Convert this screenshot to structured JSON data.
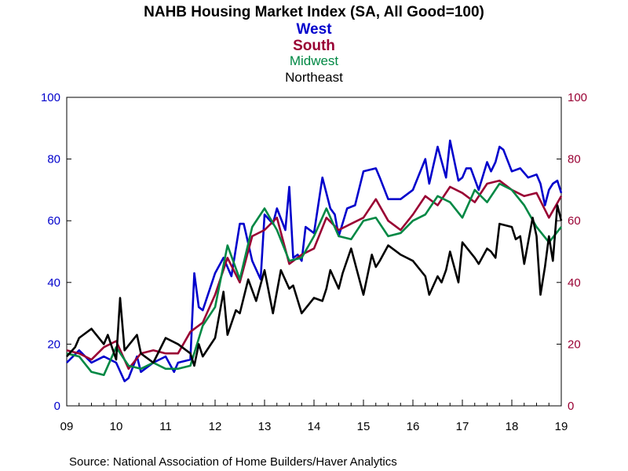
{
  "chart_data": {
    "type": "line",
    "title": "NAHB Housing Market Index (SA, All Good=100)",
    "xlabel": "",
    "ylabel": "",
    "source": "Source:  National Association of Home Builders/Haver Analytics",
    "x_tick_labels": [
      "09",
      "10",
      "11",
      "12",
      "13",
      "14",
      "15",
      "16",
      "17",
      "18",
      "19"
    ],
    "left_axis": {
      "ylim": [
        0,
        100
      ],
      "ticks": [
        "0",
        "20",
        "40",
        "60",
        "80",
        "100"
      ],
      "color": "#0000cc"
    },
    "right_axis": {
      "ylim": [
        0,
        100
      ],
      "ticks": [
        "0",
        "20",
        "40",
        "60",
        "80",
        "100"
      ],
      "color": "#990033"
    },
    "x_range": [
      2009.0,
      2019.0
    ],
    "grid": false,
    "legend": "top-center",
    "series": [
      {
        "name": "West",
        "color": "#0000cc",
        "x": [
          2009.0,
          2009.25,
          2009.5,
          2009.75,
          2010.0,
          2010.17,
          2010.25,
          2010.42,
          2010.5,
          2010.75,
          2011.0,
          2011.17,
          2011.25,
          2011.5,
          2011.58,
          2011.67,
          2011.75,
          2012.0,
          2012.17,
          2012.33,
          2012.5,
          2012.58,
          2012.75,
          2012.92,
          2013.0,
          2013.17,
          2013.25,
          2013.42,
          2013.5,
          2013.58,
          2013.67,
          2013.75,
          2013.83,
          2014.0,
          2014.17,
          2014.33,
          2014.42,
          2014.5,
          2014.67,
          2014.83,
          2015.0,
          2015.25,
          2015.33,
          2015.5,
          2015.75,
          2016.0,
          2016.25,
          2016.33,
          2016.5,
          2016.67,
          2016.75,
          2016.92,
          2017.0,
          2017.08,
          2017.17,
          2017.33,
          2017.5,
          2017.58,
          2017.67,
          2017.75,
          2017.83,
          2018.0,
          2018.17,
          2018.33,
          2018.5,
          2018.58,
          2018.67,
          2018.75,
          2018.83,
          2018.92,
          2019.0
        ],
        "y": [
          14,
          18,
          14,
          16,
          14,
          8,
          9,
          16,
          11,
          14,
          16,
          11,
          14,
          15,
          43,
          32,
          31,
          43,
          48,
          42,
          59,
          59,
          47,
          41,
          62,
          59,
          64,
          57,
          71,
          48,
          49,
          47,
          58,
          56,
          74,
          64,
          62,
          55,
          64,
          65,
          76,
          77,
          74,
          67,
          67,
          70,
          80,
          72,
          84,
          74,
          86,
          73,
          74,
          77,
          77,
          70,
          79,
          76,
          79,
          84,
          83,
          76,
          77,
          74,
          75,
          72,
          65,
          70,
          72,
          73,
          69
        ]
      },
      {
        "name": "South",
        "color": "#990033",
        "x": [
          2009.0,
          2009.25,
          2009.5,
          2009.75,
          2010.0,
          2010.25,
          2010.5,
          2010.75,
          2011.0,
          2011.25,
          2011.5,
          2011.75,
          2012.0,
          2012.25,
          2012.5,
          2012.75,
          2013.0,
          2013.25,
          2013.5,
          2013.75,
          2014.0,
          2014.25,
          2014.5,
          2014.75,
          2015.0,
          2015.25,
          2015.5,
          2015.75,
          2016.0,
          2016.25,
          2016.5,
          2016.75,
          2017.0,
          2017.25,
          2017.5,
          2017.75,
          2018.0,
          2018.25,
          2018.5,
          2018.75,
          2019.0
        ],
        "y": [
          18,
          17,
          15,
          19,
          21,
          12,
          17,
          18,
          17,
          17,
          24,
          27,
          36,
          48,
          40,
          55,
          57,
          61,
          46,
          49,
          51,
          61,
          57,
          59,
          61,
          67,
          60,
          57,
          62,
          68,
          65,
          71,
          69,
          66,
          72,
          73,
          70,
          68,
          69,
          61,
          68
        ]
      },
      {
        "name": "Midwest",
        "color": "#008844",
        "x": [
          2009.0,
          2009.25,
          2009.5,
          2009.75,
          2010.0,
          2010.25,
          2010.5,
          2010.75,
          2011.0,
          2011.25,
          2011.5,
          2011.75,
          2012.0,
          2012.25,
          2012.5,
          2012.75,
          2013.0,
          2013.25,
          2013.5,
          2013.75,
          2014.0,
          2014.25,
          2014.5,
          2014.75,
          2015.0,
          2015.25,
          2015.5,
          2015.75,
          2016.0,
          2016.25,
          2016.5,
          2016.75,
          2017.0,
          2017.25,
          2017.5,
          2017.75,
          2018.0,
          2018.25,
          2018.5,
          2018.75,
          2019.0
        ],
        "y": [
          17,
          16,
          11,
          10,
          19,
          13,
          12,
          14,
          12,
          12,
          13,
          26,
          32,
          52,
          41,
          58,
          64,
          57,
          47,
          48,
          55,
          64,
          55,
          54,
          60,
          61,
          55,
          56,
          60,
          62,
          68,
          66,
          61,
          70,
          66,
          72,
          70,
          65,
          58,
          53,
          58
        ]
      },
      {
        "name": "Northeast",
        "color": "#000000",
        "x": [
          2009.0,
          2009.17,
          2009.25,
          2009.5,
          2009.75,
          2009.83,
          2010.0,
          2010.08,
          2010.17,
          2010.42,
          2010.5,
          2010.58,
          2010.75,
          2011.0,
          2011.25,
          2011.5,
          2011.58,
          2011.67,
          2011.75,
          2012.0,
          2012.17,
          2012.25,
          2012.42,
          2012.5,
          2012.67,
          2012.83,
          2013.0,
          2013.17,
          2013.33,
          2013.5,
          2013.58,
          2013.75,
          2014.0,
          2014.17,
          2014.25,
          2014.33,
          2014.5,
          2014.58,
          2014.75,
          2015.0,
          2015.17,
          2015.25,
          2015.33,
          2015.5,
          2015.75,
          2016.0,
          2016.25,
          2016.33,
          2016.5,
          2016.58,
          2016.67,
          2016.75,
          2016.92,
          2017.0,
          2017.25,
          2017.33,
          2017.5,
          2017.58,
          2017.67,
          2017.75,
          2018.0,
          2018.08,
          2018.17,
          2018.25,
          2018.42,
          2018.5,
          2018.58,
          2018.67,
          2018.75,
          2018.83,
          2018.92,
          2019.0
        ],
        "y": [
          16,
          19,
          22,
          25,
          20,
          23,
          15,
          35,
          18,
          23,
          17,
          16,
          14,
          22,
          20,
          17,
          13,
          20,
          16,
          22,
          37,
          23,
          31,
          30,
          41,
          34,
          44,
          30,
          44,
          38,
          39,
          30,
          35,
          34,
          38,
          44,
          38,
          43,
          51,
          36,
          49,
          45,
          47,
          52,
          49,
          47,
          42,
          36,
          42,
          40,
          44,
          50,
          40,
          53,
          48,
          46,
          51,
          50,
          48,
          59,
          58,
          54,
          55,
          46,
          61,
          55,
          36,
          45,
          55,
          47,
          65,
          60
        ]
      }
    ]
  }
}
